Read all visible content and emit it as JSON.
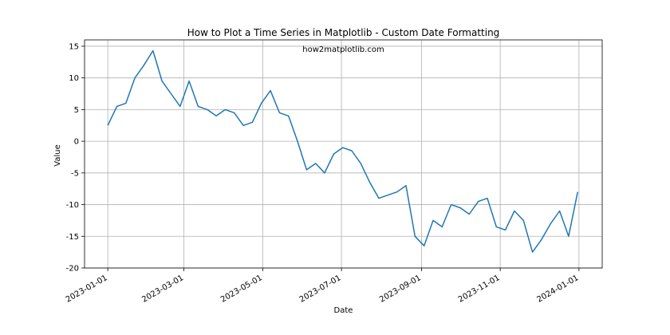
{
  "chart_data": {
    "type": "line",
    "title": "How to Plot a Time Series in Matplotlib - Custom Date Formatting",
    "annotation": "how2matplotlib.com",
    "xlabel": "Date",
    "ylabel": "Value",
    "xlim": [
      "2022-12-14",
      "2024-01-19"
    ],
    "ylim": [
      -20,
      16
    ],
    "x_ticks": [
      "2023-01-01",
      "2023-03-01",
      "2023-05-01",
      "2023-07-01",
      "2023-09-01",
      "2023-11-01",
      "2024-01-01"
    ],
    "y_ticks": [
      15,
      10,
      5,
      0,
      -5,
      -10,
      -15,
      -20
    ],
    "grid": true,
    "line_color": "#1f77b4",
    "series": [
      {
        "x": [
          "2023-01-01",
          "2023-01-08",
          "2023-01-15",
          "2023-01-22",
          "2023-01-29",
          "2023-02-05",
          "2023-02-12",
          "2023-02-19",
          "2023-02-26",
          "2023-03-05",
          "2023-03-12",
          "2023-03-19",
          "2023-03-26",
          "2023-04-02",
          "2023-04-09",
          "2023-04-16",
          "2023-04-23",
          "2023-04-30",
          "2023-05-07",
          "2023-05-14",
          "2023-05-21",
          "2023-05-28",
          "2023-06-04",
          "2023-06-11",
          "2023-06-18",
          "2023-06-25",
          "2023-07-02",
          "2023-07-09",
          "2023-07-16",
          "2023-07-23",
          "2023-07-30",
          "2023-08-06",
          "2023-08-13",
          "2023-08-20",
          "2023-08-27",
          "2023-09-03",
          "2023-09-10",
          "2023-09-17",
          "2023-09-24",
          "2023-10-01",
          "2023-10-08",
          "2023-10-15",
          "2023-10-22",
          "2023-10-29",
          "2023-11-05",
          "2023-11-12",
          "2023-11-19",
          "2023-11-26",
          "2023-12-03",
          "2023-12-10",
          "2023-12-17",
          "2023-12-24",
          "2023-12-31"
        ],
        "values": [
          2.5,
          5.5,
          6.0,
          10.0,
          12.0,
          14.3,
          9.5,
          7.5,
          5.5,
          9.5,
          5.5,
          5.0,
          4.0,
          5.0,
          4.5,
          2.5,
          3.0,
          6.0,
          8.0,
          4.5,
          4.0,
          0.0,
          -4.5,
          -3.5,
          -5.0,
          -2.0,
          -1.0,
          -1.5,
          -3.5,
          -6.5,
          -9.0,
          -8.5,
          -8.0,
          -7.0,
          -15.0,
          -16.5,
          -12.5,
          -13.5,
          -10.0,
          -10.5,
          -11.5,
          -9.5,
          -9.0,
          -13.5,
          -14.0,
          -11.0,
          -12.5,
          -17.5,
          -15.5,
          -13.0,
          -11.0,
          -15.0,
          -8.0
        ]
      }
    ]
  }
}
